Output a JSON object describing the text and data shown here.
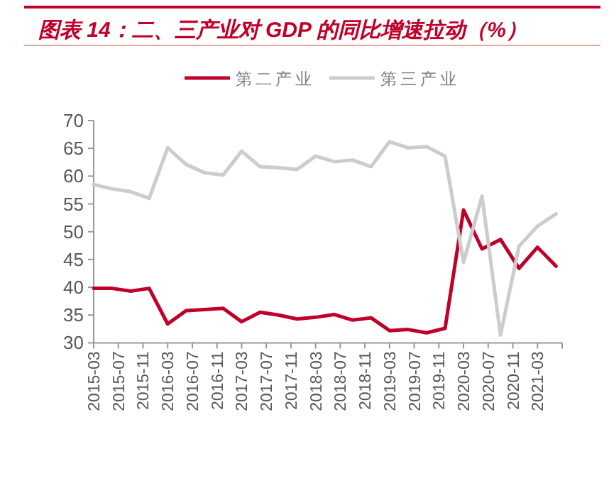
{
  "chart_data": {
    "type": "line",
    "title": "图表 14：二、三产业对 GDP 的同比增速拉动（%）",
    "x": [
      "2015-03",
      "2015-06",
      "2015-09",
      "2015-12",
      "2016-03",
      "2016-06",
      "2016-09",
      "2016-12",
      "2017-03",
      "2017-06",
      "2017-09",
      "2017-12",
      "2018-03",
      "2018-06",
      "2018-09",
      "2018-12",
      "2019-03",
      "2019-06",
      "2019-09",
      "2019-12",
      "2020-03",
      "2020-06",
      "2020-09",
      "2020-12",
      "2021-03",
      "2021-06"
    ],
    "series": [
      {
        "name": "第二产业",
        "color": "#c00029",
        "values": [
          39.8,
          39.8,
          39.3,
          39.8,
          33.4,
          35.8,
          36.0,
          36.2,
          33.8,
          35.5,
          35.0,
          34.3,
          34.6,
          35.1,
          34.1,
          34.5,
          32.2,
          32.4,
          31.8,
          32.6,
          53.9,
          46.9,
          48.6,
          43.4,
          47.2,
          43.8
        ]
      },
      {
        "name": "第三产业",
        "color": "#cccccc",
        "values": [
          58.5,
          57.7,
          57.2,
          56.0,
          65.1,
          62.1,
          60.6,
          60.2,
          64.5,
          61.7,
          61.5,
          61.2,
          63.6,
          62.6,
          62.9,
          61.7,
          66.2,
          65.1,
          65.3,
          63.6,
          44.5,
          56.4,
          31.4,
          47.4,
          51.0,
          53.2
        ]
      }
    ],
    "ylim": [
      30,
      70
    ],
    "yticks": [
      30,
      35,
      40,
      45,
      50,
      55,
      60,
      65,
      70
    ],
    "xlim": [
      "2015-03",
      "2021-07"
    ],
    "xticks": [
      "2015-03",
      "2015-07",
      "2015-11",
      "2016-03",
      "2016-07",
      "2016-11",
      "2017-03",
      "2017-07",
      "2017-11",
      "2018-03",
      "2018-07",
      "2018-11",
      "2019-03",
      "2019-07",
      "2019-11",
      "2020-03",
      "2020-07",
      "2020-11",
      "2021-03",
      {
        "value": "2021-07",
        "label": null
      }
    ],
    "legend": "top",
    "grid": false,
    "marker": "none",
    "line_style": "solid"
  }
}
